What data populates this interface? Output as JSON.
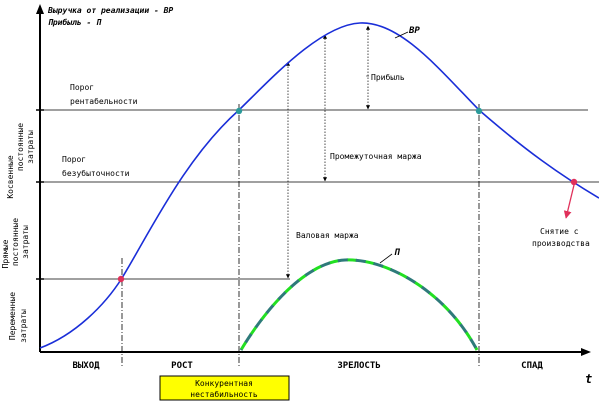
{
  "legend": {
    "line1": "Выручка от реализации - ВР",
    "line2": "Прибыль - П"
  },
  "curves": {
    "revenue_label": "ВР",
    "profit_label": "П"
  },
  "thresholds": {
    "profitability": [
      "Порог",
      "рентабельности"
    ],
    "breakeven": [
      "Порог",
      "безубыточности"
    ]
  },
  "annotations": {
    "profit": "Прибыль",
    "intermediate_margin": "Промежуточная маржа",
    "gross_margin": "Валовая маржа",
    "withdrawal": [
      "Снятие с",
      "производства"
    ],
    "instability": [
      "Конкурентная",
      "нестабильность"
    ]
  },
  "y_axis_bands": {
    "indirect_fixed": [
      "Косвенные",
      "постоянные",
      "затраты"
    ],
    "direct_fixed": [
      "Прямые",
      "постоянные",
      "затраты"
    ],
    "variable": [
      "Переменные",
      "затраты"
    ]
  },
  "stages": [
    "ВЫХОД",
    "РОСТ",
    "ЗРЕЛОСТЬ",
    "СПАД"
  ],
  "x_axis_label": "t",
  "colors": {
    "revenue_curve": "#1a2ed8",
    "profit_curve_a": "#22e022",
    "profit_curve_b": "#2e7a7a",
    "marker_teal": "#2a9a9a",
    "marker_red": "#e0305a",
    "arrow_red": "#e0305a",
    "highlight_box": "#ffff00"
  }
}
